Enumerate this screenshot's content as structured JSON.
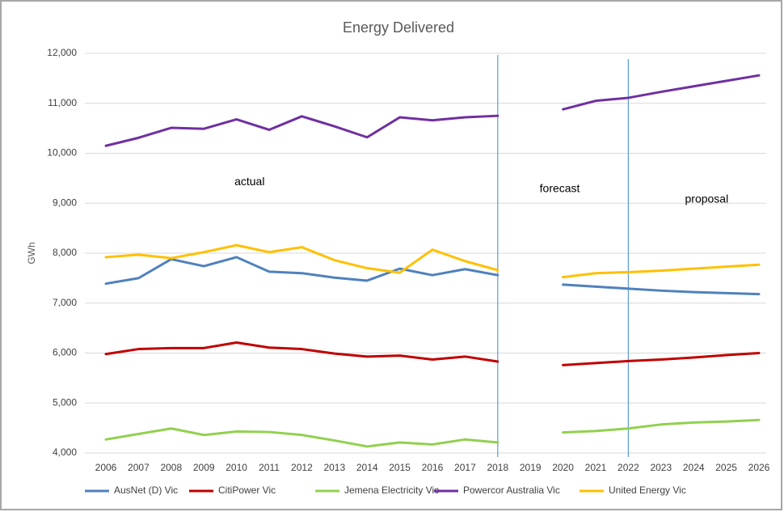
{
  "chart_data": {
    "type": "line",
    "title": "Energy Delivered",
    "y_label": "GWh",
    "x": [
      2006,
      2007,
      2008,
      2009,
      2010,
      2011,
      2012,
      2013,
      2014,
      2015,
      2016,
      2017,
      2018,
      2019,
      2020,
      2021,
      2022,
      2023,
      2024,
      2025,
      2026
    ],
    "xlim": [
      2006,
      2026
    ],
    "xticks": [
      2006,
      2007,
      2008,
      2009,
      2010,
      2011,
      2012,
      2013,
      2014,
      2015,
      2016,
      2017,
      2018,
      2019,
      2020,
      2021,
      2022,
      2023,
      2024,
      2025,
      2026
    ],
    "ylim": [
      4000,
      12000
    ],
    "yticks": [
      {
        "value": 4000,
        "label": "4,000"
      },
      {
        "value": 5000,
        "label": "5,000"
      },
      {
        "value": 6000,
        "label": "6,000"
      },
      {
        "value": 7000,
        "label": "7,000"
      },
      {
        "value": 8000,
        "label": "8,000"
      },
      {
        "value": 9000,
        "label": "9,000"
      },
      {
        "value": 10000,
        "label": "10,000"
      },
      {
        "value": 11000,
        "label": "11,000"
      },
      {
        "value": 12000,
        "label": "12,000"
      }
    ],
    "grid": true,
    "legend": "bottom",
    "vlines": [
      2018,
      2022
    ],
    "vline_color": "#5b9bd5",
    "annotations": [
      {
        "text": "actual",
        "x": 2010.4,
        "y": 9420
      },
      {
        "text": "forecast",
        "x": 2019.9,
        "y": 9280
      },
      {
        "text": "proposal",
        "x": 2024.4,
        "y": 9070
      }
    ],
    "series": [
      {
        "name": "AusNet (D) Vic",
        "color": "#4f81bd",
        "values": [
          7390,
          7500,
          7880,
          7740,
          7920,
          7630,
          7600,
          7510,
          7450,
          7690,
          7560,
          7680,
          7560,
          null,
          7370,
          7330,
          7290,
          7250,
          7220,
          7200,
          7180
        ]
      },
      {
        "name": "CitiPower Vic",
        "color": "#c00000",
        "values": [
          5980,
          6080,
          6100,
          6100,
          6210,
          6110,
          6080,
          5990,
          5930,
          5950,
          5870,
          5930,
          5830,
          null,
          5760,
          5800,
          5840,
          5870,
          5910,
          5960,
          6000
        ]
      },
      {
        "name": "Jemena Electricity Vic",
        "color": "#92d050",
        "values": [
          4270,
          4380,
          4490,
          4360,
          4430,
          4420,
          4360,
          4250,
          4130,
          4210,
          4170,
          4270,
          4210,
          null,
          4410,
          4440,
          4490,
          4570,
          4610,
          4630,
          4660
        ]
      },
      {
        "name": "Powercor Australia Vic",
        "color": "#7030a0",
        "values": [
          10150,
          10310,
          10510,
          10490,
          10680,
          10470,
          10740,
          10540,
          10320,
          10720,
          10660,
          10720,
          10750,
          null,
          10880,
          11050,
          11110,
          11230,
          11340,
          11450,
          11560
        ]
      },
      {
        "name": "United Energy Vic",
        "color": "#ffc000",
        "values": [
          7920,
          7970,
          7900,
          8020,
          8160,
          8020,
          8120,
          7860,
          7700,
          7610,
          8070,
          7840,
          7660,
          null,
          7520,
          7600,
          7620,
          7650,
          7690,
          7730,
          7770
        ]
      }
    ]
  }
}
